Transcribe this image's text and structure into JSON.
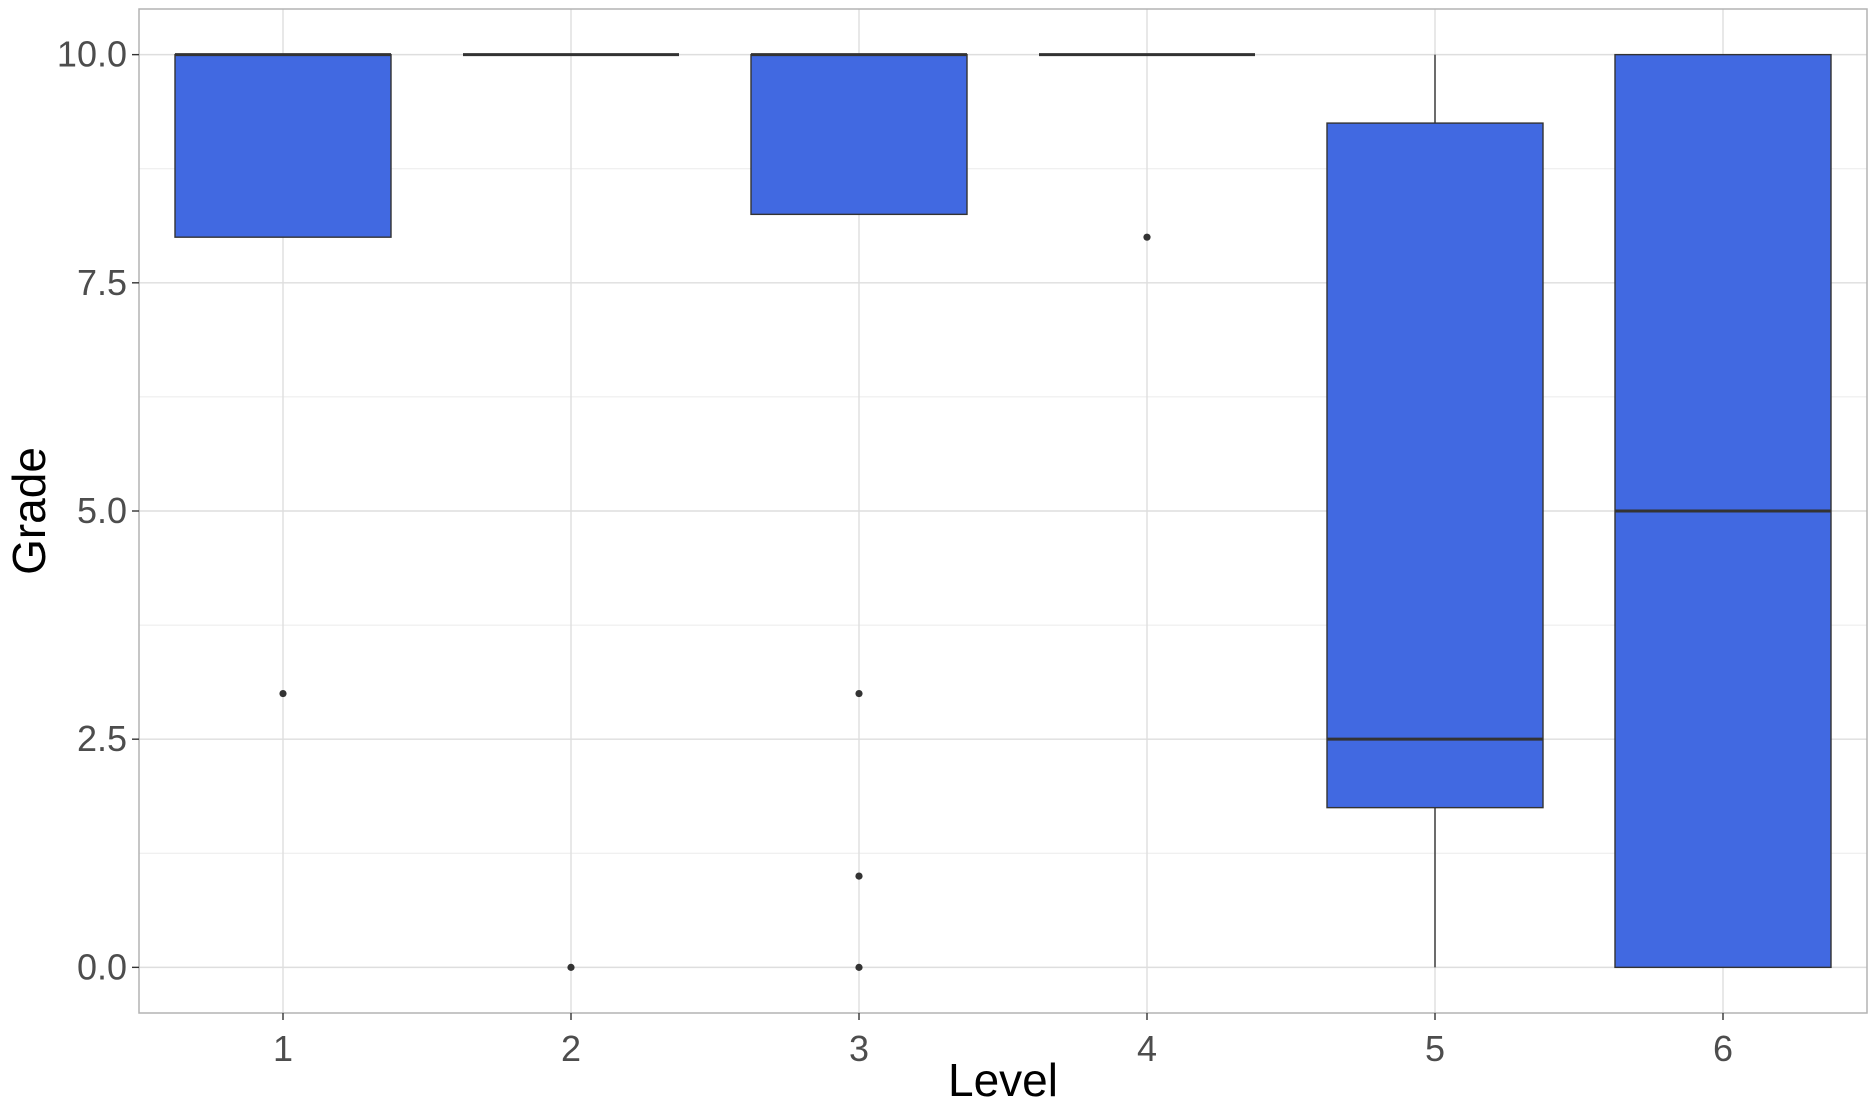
{
  "chart_data": {
    "type": "boxplot",
    "xlabel": "Level",
    "ylabel": "Grade",
    "categories": [
      "1",
      "2",
      "3",
      "4",
      "5",
      "6"
    ],
    "ylim": [
      -0.5,
      10.5
    ],
    "yticks": [
      0.0,
      2.5,
      5.0,
      7.5,
      10.0
    ],
    "ytick_labels": [
      "0.0",
      "2.5",
      "5.0",
      "7.5",
      "10.0"
    ],
    "grid": true,
    "fill_color": "#4169E1",
    "boxes": [
      {
        "category": "1",
        "whisker_low": 8.0,
        "q1": 8.0,
        "median": 10.0,
        "q3": 10.0,
        "whisker_high": 10.0,
        "outliers": [
          3.0
        ]
      },
      {
        "category": "2",
        "whisker_low": 10.0,
        "q1": 10.0,
        "median": 10.0,
        "q3": 10.0,
        "whisker_high": 10.0,
        "outliers": [
          0.0
        ]
      },
      {
        "category": "3",
        "whisker_low": 8.25,
        "q1": 8.25,
        "median": 10.0,
        "q3": 10.0,
        "whisker_high": 10.0,
        "outliers": [
          3.0,
          1.0,
          0.0
        ]
      },
      {
        "category": "4",
        "whisker_low": 10.0,
        "q1": 10.0,
        "median": 10.0,
        "q3": 10.0,
        "whisker_high": 10.0,
        "outliers": [
          8.0
        ]
      },
      {
        "category": "5",
        "whisker_low": 0.0,
        "q1": 1.75,
        "median": 2.5,
        "q3": 9.25,
        "whisker_high": 10.0,
        "outliers": []
      },
      {
        "category": "6",
        "whisker_low": 0.0,
        "q1": 0.0,
        "median": 5.0,
        "q3": 10.0,
        "whisker_high": 10.0,
        "outliers": []
      }
    ]
  }
}
